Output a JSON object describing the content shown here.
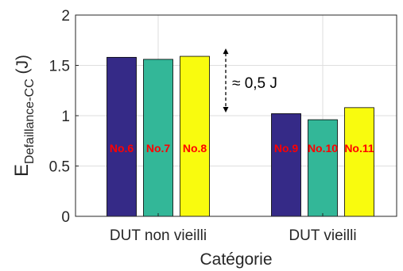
{
  "chart_data": {
    "type": "bar",
    "categories": [
      "DUT non vieilli",
      "DUT vieilli"
    ],
    "groups": [
      {
        "category": "DUT non vieilli",
        "bars": [
          {
            "label": "No.6",
            "value": 1.58,
            "color": "#352a87"
          },
          {
            "label": "No.7",
            "value": 1.56,
            "color": "#33b798"
          },
          {
            "label": "No.8",
            "value": 1.59,
            "color": "#f9fb0e"
          }
        ]
      },
      {
        "category": "DUT vieilli",
        "bars": [
          {
            "label": "No.9",
            "value": 1.02,
            "color": "#352a87"
          },
          {
            "label": "No.10",
            "value": 0.96,
            "color": "#33b798"
          },
          {
            "label": "No.11",
            "value": 1.08,
            "color": "#f9fb0e"
          }
        ]
      }
    ],
    "xlabel": "Catégorie",
    "ylabel_main": "E",
    "ylabel_sub": "Defaillance-CC",
    "ylabel_unit": " (J)",
    "ylim": [
      0,
      2
    ],
    "yticks": [
      {
        "value": 0,
        "label": "0"
      },
      {
        "value": 0.5,
        "label": "0.5"
      },
      {
        "value": 1,
        "label": "1"
      },
      {
        "value": 1.5,
        "label": "1.5"
      },
      {
        "value": 2,
        "label": "2"
      }
    ],
    "grid": true,
    "annotation": {
      "text": "≈ 0,5 J",
      "from": 1.59,
      "to": 1.0
    },
    "bar_label_color": "#ff0000"
  }
}
